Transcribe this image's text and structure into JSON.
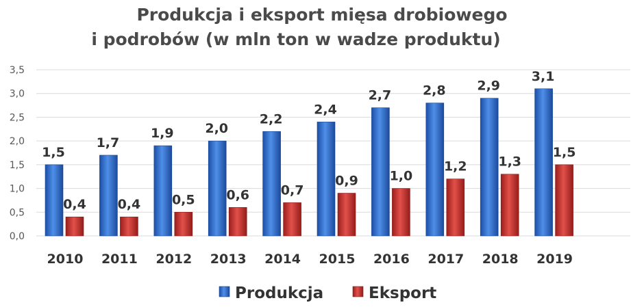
{
  "chart_data": {
    "type": "bar",
    "title_lines": [
      "Produkcja i eksport mięsa drobiowego",
      "i podrobów (w mln ton w wadze produktu)"
    ],
    "categories": [
      "2010",
      "2011",
      "2012",
      "2013",
      "2014",
      "2015",
      "2016",
      "2017",
      "2018",
      "2019"
    ],
    "series": [
      {
        "name": "Produkcja",
        "color": "#2f6fd0",
        "values": [
          1.5,
          1.7,
          1.9,
          2.0,
          2.2,
          2.4,
          2.7,
          2.8,
          2.9,
          3.1
        ],
        "labels": [
          "1,5",
          "1,7",
          "1,9",
          "2,0",
          "2,2",
          "2,4",
          "2,7",
          "2,8",
          "2,9",
          "3,1"
        ]
      },
      {
        "name": "Eksport",
        "color": "#c9302c",
        "values": [
          0.4,
          0.4,
          0.5,
          0.6,
          0.7,
          0.9,
          1.0,
          1.2,
          1.3,
          1.5
        ],
        "labels": [
          "0,4",
          "0,4",
          "0,5",
          "0,6",
          "0,7",
          "0,9",
          "1,0",
          "1,2",
          "1,3",
          "1,5"
        ]
      }
    ],
    "ylim": [
      0,
      3.5
    ],
    "yticks": [
      "0,0",
      "0,5",
      "1,0",
      "1,5",
      "2,0",
      "2,5",
      "3,0",
      "3,5"
    ],
    "grid": true,
    "legend_position": "bottom"
  }
}
